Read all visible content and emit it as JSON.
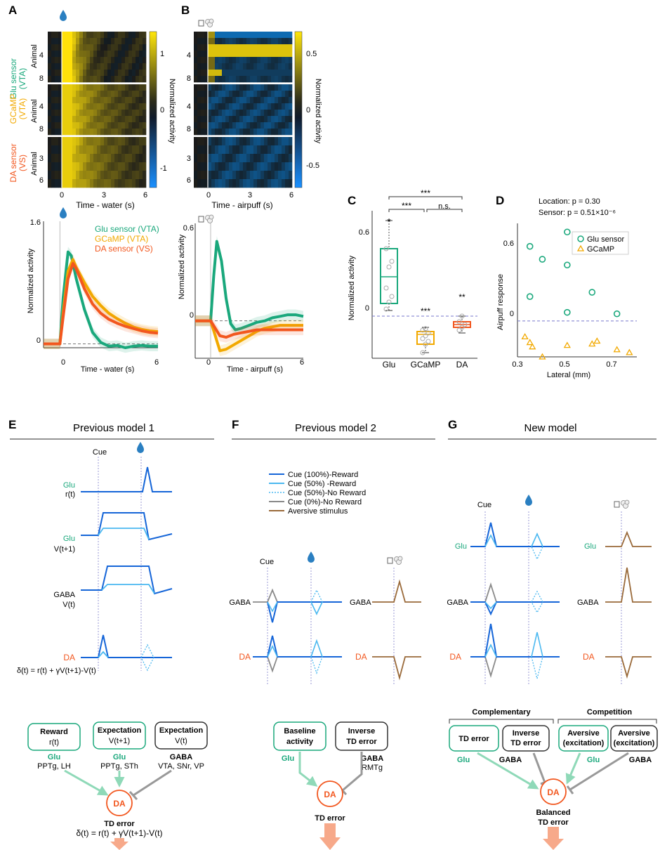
{
  "colors": {
    "glu": "#1aa87c",
    "gcamp": "#f2a900",
    "da": "#f2571f",
    "dark_blue": "#1565d8",
    "light_blue": "#4ab8f0",
    "gray": "#8a8a8a",
    "brown": "#9a6a3a",
    "dash": "#9a9ad6",
    "drop": "#2a7fc1",
    "arrow": "#f7a98a",
    "green_arrow": "#8fd9b8"
  },
  "icons": {
    "reward": "water-drop-icon",
    "aversive": "airpuff-icon"
  },
  "labels": {
    "panel_a": "A",
    "panel_b": "B",
    "panel_c": "C",
    "panel_d": "D",
    "panel_e": "E",
    "panel_f": "F",
    "panel_g": "G",
    "row_glu_1": "Glu sensor",
    "row_glu_2": "(VTA)",
    "row_gcamp_1": "GCaMP",
    "row_gcamp_2": "(VTA)",
    "row_da_1": "DA sensor",
    "row_da_2": "(VS)",
    "animal": "Animal",
    "hm_a_yticks": [
      [
        "4",
        "8"
      ],
      [
        "4",
        "8"
      ],
      [
        "3",
        "6"
      ]
    ],
    "hm_b_yticks": [
      [
        "4",
        "8"
      ],
      [
        "4",
        "8"
      ],
      [
        "3",
        "6"
      ]
    ],
    "hm_x_ticks": [
      "0",
      "3",
      "6"
    ],
    "hm_a_xlabel": "Time - water (s)",
    "hm_b_xlabel": "Time - airpuff (s)",
    "cbar_a_ticks": [
      "1",
      "0",
      "-1"
    ],
    "cbar_b_ticks": [
      "0.5",
      "0",
      "-0.5"
    ],
    "cbar_label": "Normalized activity",
    "line_a_ylabel": "Normalized activity",
    "line_a_yticks": [
      "1.6",
      "0"
    ],
    "line_a_xlabel": "Time - water (s)",
    "line_a_xticks": [
      "0",
      "6"
    ],
    "line_b_ylabel": "Normalized activity",
    "line_b_yticks": [
      "0.6",
      "0"
    ],
    "line_b_xlabel": "Time - airpuff (s)",
    "line_b_xticks": [
      "0",
      "6"
    ],
    "legend_a": [
      "Glu sensor (VTA)",
      "GCaMP (VTA)",
      "DA sensor (VS)"
    ],
    "c_ylabel": "Normalized activity",
    "c_yticks": [
      "0.6",
      "0"
    ],
    "c_xcats": [
      "Glu",
      "GCaMP",
      "DA"
    ],
    "c_sig_top": "***",
    "c_sig_left": "***",
    "c_sig_right": "n.s.",
    "c_star_glu": "*",
    "c_star_gcamp": "***",
    "c_star_da": "**",
    "d_loc": "Location: p = 0.30",
    "d_sensor": "Sensor: p = 0.51×10⁻⁶",
    "d_ylabel": "Airpuff response",
    "d_yticks": [
      "0.6",
      "0"
    ],
    "d_xticks": [
      "0.3",
      "0.5",
      "0.7"
    ],
    "d_xlabel": "Lateral (mm)",
    "d_legend": [
      "Glu sensor",
      "GCaMP"
    ],
    "e_title": "Previous model 1",
    "f_title": "Previous model 2",
    "g_title": "New model",
    "cue": "Cue",
    "e_glu": "Glu",
    "e_rt": "r(t)",
    "e_glu2": "Glu",
    "e_vt1": "V(t+1)",
    "e_gaba": "GABA",
    "e_vt": "V(t)",
    "e_da": "DA",
    "e_formula": "δ(t) = r(t) + γV(t+1)-V(t)",
    "f_legend": [
      "Cue (100%)-Reward",
      "Cue (50%) -Reward",
      "Cue (50%)-No Reward",
      "Cue (0%)-No Reward",
      "Aversive stimulus"
    ],
    "gaba": "GABA",
    "da": "DA",
    "glu": "Glu",
    "e_box1_1": "Reward",
    "e_box1_2": "r(t)",
    "e_box2_1": "Expectation",
    "e_box2_2": "V(t+1)",
    "e_box3_1": "Expectation",
    "e_box3_2": "V(t)",
    "e_src1_1": "Glu",
    "e_src1_2": "PPTg, LH",
    "e_src2_1": "Glu",
    "e_src2_2": "PPTg, STh",
    "e_src3_1": "GABA",
    "e_src3_2": "VTA, SNr, VP",
    "e_bottom_1": "TD error",
    "e_bottom_2": "δ(t) = r(t) + γV(t+1)-V(t)",
    "f_box1_1": "Baseline",
    "f_box1_2": "activity",
    "f_box2_1": "Inverse",
    "f_box2_2": "TD error",
    "f_src2_1": "GABA",
    "f_src2_2": "RMTg",
    "f_bottom": "TD error",
    "g_comp": "Complementary",
    "g_compet": "Competition",
    "g_box1": "TD error",
    "g_box2_1": "Inverse",
    "g_box2_2": "TD error",
    "g_box3_1": "Aversive",
    "g_box3_2": "(excitation)",
    "g_box4_1": "Aversive",
    "g_box4_2": "(excitation)",
    "g_bottom_1": "Balanced",
    "g_bottom_2": "TD error"
  },
  "chart_data": [
    {
      "type": "line",
      "panel": "A",
      "xlabel": "Time - water (s)",
      "ylabel": "Normalized activity",
      "xlim": [
        -1,
        6
      ],
      "ylim": [
        -0.05,
        1.6
      ],
      "series": [
        {
          "name": "Glu sensor (VTA)",
          "x": [
            -1,
            0,
            0.2,
            0.5,
            0.7,
            1,
            1.5,
            2,
            2.5,
            3,
            3.5,
            4,
            4.5,
            5,
            5.5,
            6
          ],
          "y": [
            0,
            0,
            0.6,
            1.2,
            1.15,
            0.85,
            0.45,
            0.15,
            0.02,
            -0.03,
            -0.02,
            -0.05,
            -0.03,
            -0.02,
            -0.03,
            -0.03
          ]
        },
        {
          "name": "GCaMP (VTA)",
          "x": [
            -1,
            0,
            0.2,
            0.5,
            0.8,
            1,
            1.5,
            2,
            2.5,
            3,
            3.5,
            4,
            4.5,
            5,
            5.5,
            6
          ],
          "y": [
            0,
            0,
            0.4,
            0.95,
            1.1,
            1.0,
            0.8,
            0.62,
            0.5,
            0.4,
            0.33,
            0.27,
            0.22,
            0.19,
            0.17,
            0.16
          ]
        },
        {
          "name": "DA sensor (VS)",
          "x": [
            -1,
            0,
            0.2,
            0.5,
            0.8,
            1,
            1.5,
            2,
            2.5,
            3,
            3.5,
            4,
            4.5,
            5,
            5.5,
            6
          ],
          "y": [
            0,
            0,
            0.35,
            0.85,
            1.05,
            0.98,
            0.72,
            0.52,
            0.4,
            0.32,
            0.27,
            0.23,
            0.2,
            0.17,
            0.15,
            0.14
          ]
        }
      ]
    },
    {
      "type": "line",
      "panel": "B",
      "xlabel": "Time - airpuff (s)",
      "ylabel": "Normalized activity",
      "xlim": [
        -1,
        6
      ],
      "ylim": [
        -0.25,
        0.65
      ],
      "series": [
        {
          "name": "Glu sensor (VTA)",
          "x": [
            -1,
            0,
            0.2,
            0.4,
            0.7,
            1,
            1.3,
            1.6,
            2,
            2.5,
            3,
            3.5,
            4,
            4.5,
            5,
            5.5,
            6
          ],
          "y": [
            0,
            0,
            0.3,
            0.53,
            0.4,
            0.15,
            -0.02,
            -0.06,
            -0.05,
            -0.03,
            -0.01,
            0,
            0.02,
            0.03,
            0.04,
            0.04,
            0.03
          ]
        },
        {
          "name": "GCaMP (VTA)",
          "x": [
            -1,
            0,
            0.3,
            0.6,
            1,
            1.5,
            2,
            2.5,
            3,
            3.5,
            4,
            4.5,
            5,
            5.5,
            6
          ],
          "y": [
            0,
            0,
            -0.1,
            -0.2,
            -0.19,
            -0.16,
            -0.13,
            -0.1,
            -0.07,
            -0.05,
            -0.04,
            -0.03,
            -0.03,
            -0.03,
            -0.03
          ]
        },
        {
          "name": "DA sensor (VS)",
          "x": [
            -1,
            0,
            0.3,
            0.6,
            1,
            1.5,
            2,
            2.5,
            3,
            3.5,
            4,
            4.5,
            5,
            5.5,
            6
          ],
          "y": [
            0,
            0,
            -0.05,
            -0.1,
            -0.11,
            -0.09,
            -0.08,
            -0.07,
            -0.06,
            -0.06,
            -0.06,
            -0.06,
            -0.06,
            -0.06,
            -0.06
          ]
        }
      ]
    },
    {
      "type": "box",
      "panel": "C",
      "categories": [
        "Glu",
        "GCaMP",
        "DA"
      ],
      "ylabel": "Normalized activity",
      "ylim": [
        -0.3,
        0.75
      ],
      "boxes": [
        {
          "category": "Glu",
          "min": 0.04,
          "q1": 0.09,
          "median": 0.28,
          "q3": 0.48,
          "max": 0.68
        },
        {
          "category": "GCaMP",
          "min": -0.26,
          "q1": -0.2,
          "median": -0.13,
          "q3": -0.11,
          "max": -0.08
        },
        {
          "category": "DA",
          "min": -0.12,
          "q1": -0.08,
          "median": -0.06,
          "q3": -0.04,
          "max": 0.0
        }
      ],
      "points": [
        {
          "category": "Glu",
          "values": [
            0.05,
            0.1,
            0.14,
            0.2,
            0.35,
            0.39,
            0.48
          ]
        },
        {
          "category": "GCaMP",
          "values": [
            -0.26,
            -0.2,
            -0.18,
            -0.16,
            -0.14,
            -0.12,
            -0.1,
            -0.09
          ]
        },
        {
          "category": "DA",
          "values": [
            -0.1,
            -0.08,
            -0.06,
            -0.04,
            0.0
          ]
        }
      ]
    },
    {
      "type": "scatter",
      "panel": "D",
      "xlabel": "Lateral (mm)",
      "ylabel": "Airpuff response",
      "xlim": [
        0.3,
        0.78
      ],
      "ylim": [
        -0.25,
        0.68
      ],
      "series": [
        {
          "name": "Glu sensor",
          "x": [
            0.35,
            0.35,
            0.4,
            0.5,
            0.5,
            0.5,
            0.6,
            0.7
          ],
          "y": [
            0.52,
            0.17,
            0.43,
            0.62,
            0.39,
            0.06,
            0.2,
            0.05
          ]
        },
        {
          "name": "GCaMP",
          "x": [
            0.33,
            0.35,
            0.36,
            0.4,
            0.5,
            0.6,
            0.62,
            0.7,
            0.75
          ],
          "y": [
            -0.11,
            -0.15,
            -0.18,
            -0.25,
            -0.17,
            -0.16,
            -0.14,
            -0.2,
            -0.22
          ]
        }
      ]
    }
  ]
}
